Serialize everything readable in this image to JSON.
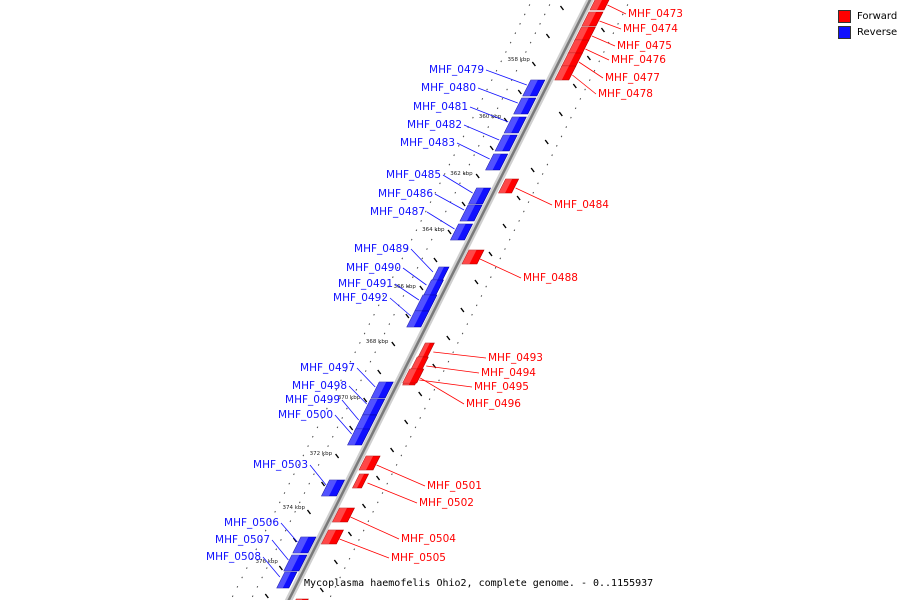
{
  "legend": {
    "forward_label": "Forward",
    "reverse_label": "Reverse",
    "forward_color": "#ff0000",
    "reverse_color": "#1010ff"
  },
  "caption": "Mycoplasma haemofelis Ohio2, complete genome. - 0..1155937",
  "scale_ticks": [
    "358 kbp",
    "360 kbp",
    "362 kbp",
    "364 kbp",
    "366 kbp",
    "368 kbp",
    "370 kbp",
    "372 kbp",
    "374 kbp",
    "376 kbp"
  ],
  "forward_genes": [
    "MHF_0473",
    "MHF_0474",
    "MHF_0475",
    "MHF_0476",
    "MHF_0477",
    "MHF_0478",
    "MHF_0484",
    "MHF_0488",
    "MHF_0493",
    "MHF_0494",
    "MHF_0495",
    "MHF_0496",
    "MHF_0501",
    "MHF_0502",
    "MHF_0504",
    "MHF_0505"
  ],
  "reverse_genes": [
    "MHF_0479",
    "MHF_0480",
    "MHF_0481",
    "MHF_0482",
    "MHF_0483",
    "MHF_0485",
    "MHF_0486",
    "MHF_0487",
    "MHF_0489",
    "MHF_0490",
    "MHF_0491",
    "MHF_0492",
    "MHF_0497",
    "MHF_0498",
    "MHF_0499",
    "MHF_0500",
    "MHF_0503",
    "MHF_0506",
    "MHF_0507",
    "MHF_0508"
  ]
}
